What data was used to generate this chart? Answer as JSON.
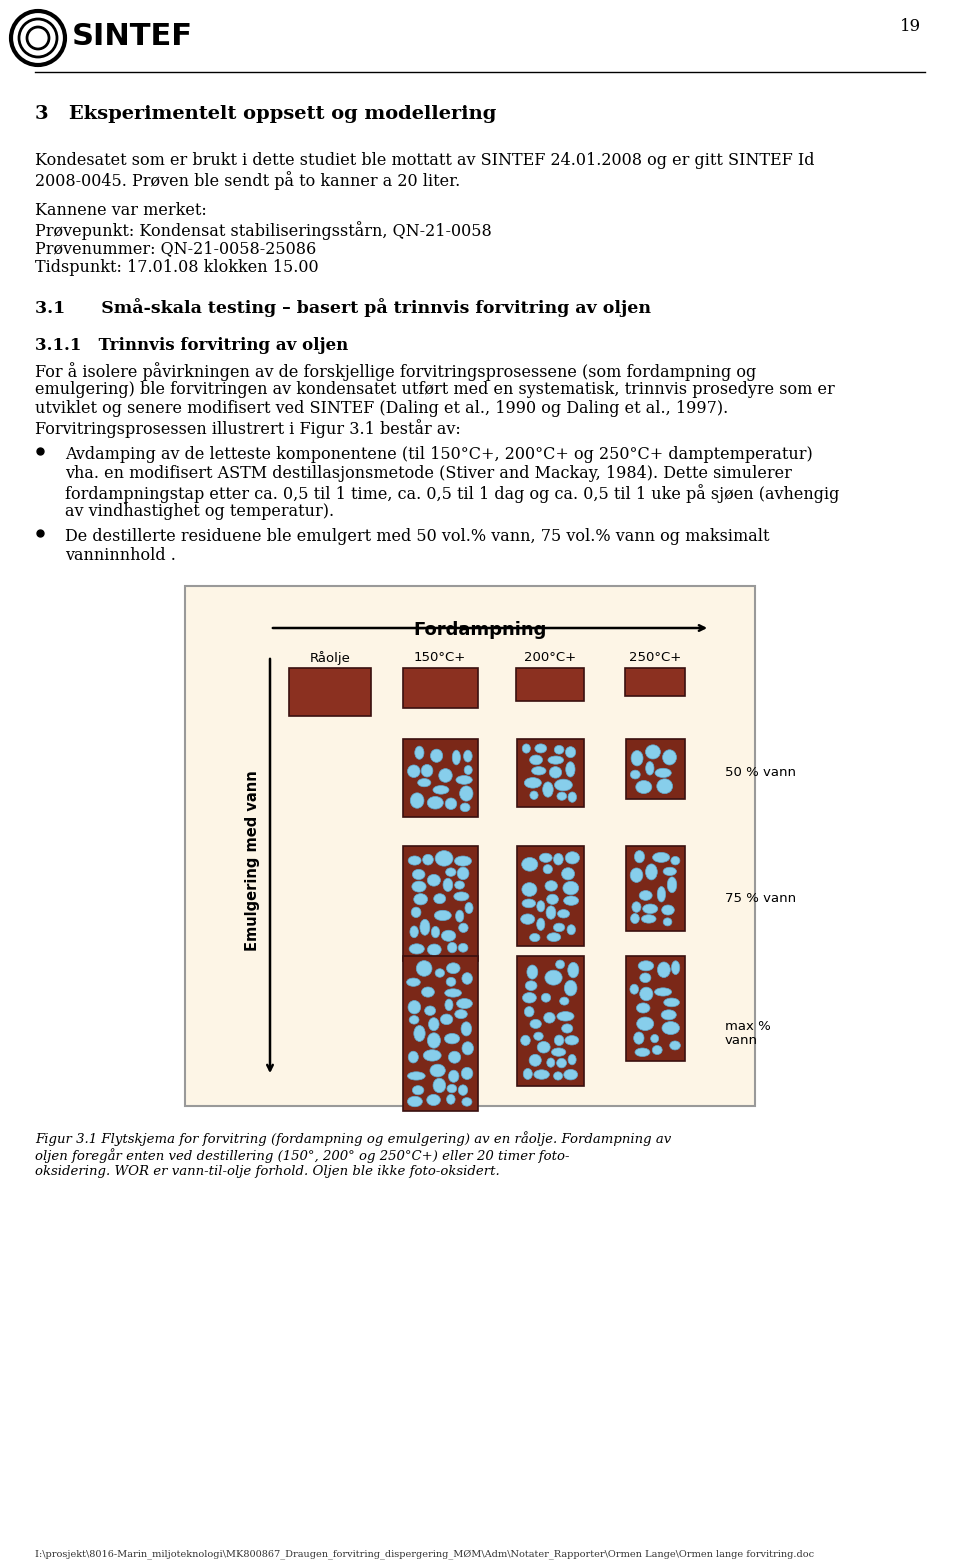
{
  "page_number": "19",
  "bg_color": "#ffffff",
  "section_heading": "3   Eksperimentelt oppsett og modellering",
  "para1_line1": "Kondesatet som er brukt i dette studiet ble mottatt av SINTEF 24.01.2008 og er gitt SINTEF Id",
  "para1_line2": "2008-0045. Prøven ble sendt på to kanner a 20 liter.",
  "para2_title": "Kannene var merket:",
  "para2_lines": [
    "Prøvepunkt: Kondensat stabiliseringsstårn, QN-21-0058",
    "Prøvenummer: QN-21-0058-25086",
    "Tidspunkt: 17.01.08 klokken 15.00"
  ],
  "subsection1": "3.1      Små-skala testing – basert på trinnvis forvitring av oljen",
  "subsection2": "3.1.1   Trinnvis forvitring av oljen",
  "para3_lines": [
    "For å isolere påvirkningen av de forskjellige forvitringsprosessene (som fordampning og",
    "emulgering) ble forvitringen av kondensatet utført med en systematisk, trinnvis prosedyre som er",
    "utviklet og senere modifisert ved SINTEF (Daling et al., 1990 og Daling et al., 1997).",
    "Forvitringsprosessen illustrert i Figur 3.1 består av:"
  ],
  "para3_italic_line": "utviklet og senere modifisert ved SINTEF (Daling et al., 1990 og Daling et al., 1997).",
  "bullet1_lines": [
    "Avdamping av de letteste komponentene (til 150°C+, 200°C+ og 250°C+ damptemperatur)",
    "vha. en modifisert ASTM destillasjonsmetode (Stiver and Mackay, 1984). Dette simulerer",
    "fordampningstap etter ca. 0,5 til 1 time, ca. 0,5 til 1 dag og ca. 0,5 til 1 uke på sjøen (avhengig",
    "av vindhastighet og temperatur)."
  ],
  "bullet2_lines": [
    "De destillerte residuene ble emulgert med 50 vol.% vann, 75 vol.% vann og maksimalt",
    "vanninnhold ."
  ],
  "fig_caption_lines": [
    "Figur 3.1 Flytskjema for forvitring (fordampning og emulgering) av en råolje. Fordampning av",
    "oljen foregår enten ved destillering (150°, 200° og 250°C+) eller 20 timer foto-",
    "oksidering. WOR er vann-til-olje forhold. Oljen ble ikke foto-oksidert."
  ],
  "footer_text": "I:\\prosjekt\\8016-Marin_miljoteknologi\\MK800867_Draugen_forvitring_dispergering_MØM\\Adm\\Notater_Rapporter\\Ormen Lange\\Ormen lange forvitring.doc",
  "diagram_bg": "#fdf5e6",
  "oil_color": "#8B3020",
  "emulsion_color": "#7B2818",
  "droplet_color": "#87CEEB",
  "fordampning_label": "Fordampning",
  "col_labels": [
    "Råolje",
    "150°C+",
    "200°C+",
    "250°C+"
  ],
  "row_labels": [
    "50 % vann",
    "75 % vann",
    "max %\nvann"
  ],
  "emulgering_label": "Emulgering med vann"
}
